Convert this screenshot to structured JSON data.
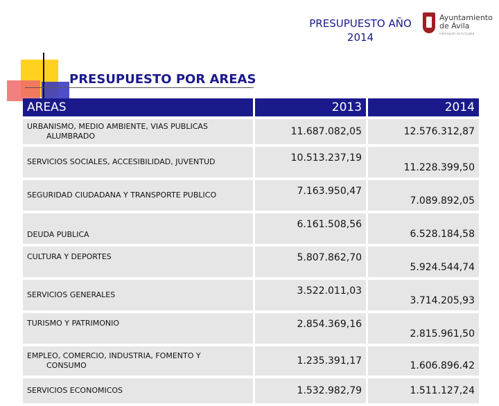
{
  "header": {
    "title_line1": "PRESUPUESTO AÑO",
    "title_line2": "2014"
  },
  "logo": {
    "line1": "Ayuntamiento",
    "line2": "de Ávila",
    "sub": "Información de la Ciudad"
  },
  "section_title": "PRESUPUESTO POR AREAS",
  "table": {
    "headers": {
      "area": "AREAS",
      "y2013": "2013",
      "y2014": "2014"
    },
    "rows": [
      {
        "area1": "URBANISMO, MEDIO AMBIENTE, VIAS  PUBLICAS",
        "area2": "ALUMBRADO",
        "v2013": "11.687.082,05",
        "v2014": "12.576.312,87"
      },
      {
        "area1": "SERVICIOS SOCIALES, ACCESIBILIDAD, JUVENTUD",
        "area2": "",
        "v2013": "10.513.237,19",
        "v2014": "11.228.399,50"
      },
      {
        "area1": "SEGURIDAD CIUDADANA Y TRANSPORTE PUBLICO",
        "area2": "",
        "v2013": "7.163.950,47",
        "v2014": "7.089.892,05"
      },
      {
        "area1": "DEUDA PUBLICA",
        "area2": "",
        "v2013": "6.161.508,56",
        "v2014": "6.528.184,58"
      },
      {
        "area1": "CULTURA Y DEPORTES",
        "area2": "",
        "v2013": "5.807.862,70",
        "v2014": "5.924.544,74"
      },
      {
        "area1": "SERVICIOS GENERALES",
        "area2": "",
        "v2013": "3.522.011,03",
        "v2014": "3.714.205,93"
      },
      {
        "area1": "TURISMO Y PATRIMONIO",
        "area2": "",
        "v2013": "2.854.369,16",
        "v2014": "2.815.961,50"
      },
      {
        "area1": "EMPLEO, COMERCIO, INDUSTRIA, FOMENTO Y",
        "area2": "CONSUMO",
        "v2013": "1.235.391,17",
        "v2014": "1.606.896.42"
      },
      {
        "area1": "SERVICIOS ECONOMICOS",
        "area2": "",
        "v2013": "1.532.982,79",
        "v2014": "1.511.127,24"
      }
    ]
  },
  "colors": {
    "header_bg": "#1a1a8c",
    "title_color": "#1a1a8c",
    "row_bg": "#e6e6e6",
    "logo_red": "#a01e24"
  }
}
